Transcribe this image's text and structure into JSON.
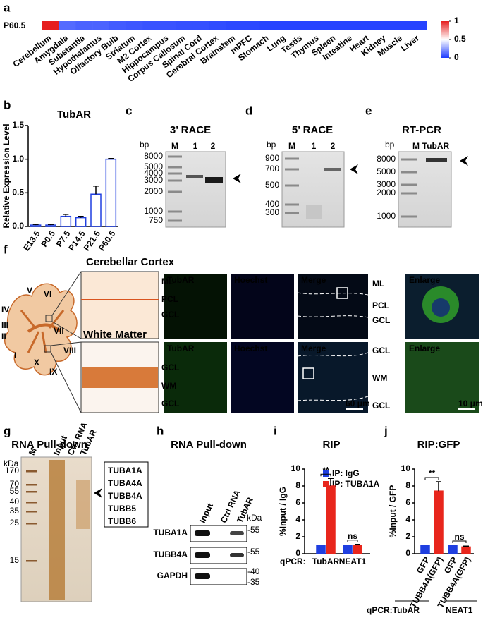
{
  "a": {
    "label": "a",
    "row_label": "P60.5",
    "type": "heatmap",
    "categories": [
      "Cerebellum",
      "Amygdala",
      "Substantia",
      "Hypothalamus",
      "Olfactory Bulb",
      "Striatum",
      "M2 Cortex",
      "Hippocampus",
      "Corpus Callosum",
      "Spinal Cord",
      "Cerebral Cortex",
      "Brainstem",
      "mPFC",
      "Stomach",
      "Lung",
      "Testis",
      "Thymus",
      "Spleen",
      "Intestine",
      "Heart",
      "Kidney",
      "Muscle",
      "Liver"
    ],
    "values": [
      1,
      0.12,
      0.1,
      0.1,
      0.08,
      0.07,
      0.06,
      0.06,
      0.05,
      0.05,
      0.04,
      0.03,
      0.03,
      0.02,
      0.02,
      0.02,
      0.02,
      0.02,
      0.02,
      0.02,
      0.02,
      0.02,
      0.02
    ],
    "clim": [
      0,
      1
    ],
    "colorbar_ticks": [
      1,
      0.5,
      0
    ]
  },
  "b": {
    "label": "b",
    "type": "bar",
    "title": "TubAR",
    "ylabel": "Relative Expression Level",
    "categories": [
      "E13.5",
      "P0.5",
      "P7.5",
      "P14.5",
      "P21.5",
      "P60.5"
    ],
    "values": [
      0.02,
      0.02,
      0.15,
      0.13,
      0.48,
      1.0
    ],
    "errors": [
      0.01,
      0.01,
      0.03,
      0.02,
      0.12,
      0.01
    ],
    "color": "#1f3fe0",
    "ylim": [
      0,
      1.5
    ],
    "yticks": [
      {
        "value": 0,
        "label": "0.0"
      },
      {
        "value": 0.5,
        "label": "0.5"
      },
      {
        "value": 1,
        "label": "1.0"
      },
      {
        "value": 1.5,
        "label": "1.5"
      }
    ]
  },
  "c": {
    "label": "c",
    "title": "3’ RACE",
    "unit": "bp",
    "lanes": [
      "M",
      "1",
      "2"
    ],
    "ladder": [
      8000,
      5000,
      4000,
      3000,
      2000,
      1000,
      750
    ]
  },
  "d": {
    "label": "d",
    "title": "5’ RACE",
    "unit": "bp",
    "lanes": [
      "M",
      "1",
      "2"
    ],
    "ladder": [
      900,
      700,
      500,
      400,
      300
    ]
  },
  "e": {
    "label": "e",
    "title": "RT-PCR",
    "unit": "bp",
    "lanes": [
      "M",
      "TubAR"
    ],
    "ladder": [
      8000,
      5000,
      3000,
      2000,
      1000
    ]
  },
  "f": {
    "label": "f",
    "regions": [
      "Cerebellar Cortex",
      "White Matter"
    ],
    "lobules": [
      "IV",
      "V",
      "VI",
      "III",
      "II",
      "VII",
      "VIII",
      "I",
      "X",
      "IX"
    ],
    "layers_top": [
      "ML",
      "PCL",
      "GCL"
    ],
    "layers_bottom": [
      "GCL",
      "WM",
      "GCL"
    ],
    "channels": [
      "TubAR",
      "Hoechst",
      "Merge",
      "Enlarge"
    ],
    "channels_bottom": [
      "TubAR",
      "Hoechst",
      "Merge",
      "Enlarge"
    ],
    "merge_layers_top": [
      "ML",
      "PCL",
      "GCL"
    ],
    "merge_layers_bottom": [
      "GCL",
      "WM",
      "GCL"
    ],
    "scale_bars": [
      "60 μm",
      "10 μm"
    ]
  },
  "g": {
    "label": "g",
    "title": "RNA Pull-down",
    "unit": "kDa",
    "lanes": [
      "M",
      "Input",
      "Ctrl RNA",
      "TubAR"
    ],
    "ladder": [
      170,
      70,
      55,
      40,
      35,
      25,
      15
    ],
    "proteins": [
      "TUBA1A",
      "TUBA4A",
      "TUBB4A",
      "TUBB5",
      "TUBB6"
    ]
  },
  "h": {
    "label": "h",
    "title": "RNA Pull-down",
    "unit": "kDa",
    "lanes": [
      "Input",
      "Ctrl RNA",
      "TubAR"
    ],
    "rows": [
      "TUBA1A",
      "TUBB4A",
      "GAPDH"
    ],
    "markers": [
      "-55",
      "-55",
      "-40",
      "-35"
    ]
  },
  "i": {
    "label": "i",
    "type": "bar",
    "title": "RIP",
    "ylabel": "%Input / IgG",
    "xprefix": "qPCR:",
    "categories": [
      "TubAR",
      "NEAT1"
    ],
    "ylim": [
      0,
      10
    ],
    "yticks": [
      0,
      2,
      4,
      6,
      8,
      10
    ],
    "series": [
      {
        "name": "IP: IgG",
        "color": "#1f3fe0",
        "values": [
          1,
          1
        ],
        "errors": [
          0,
          0
        ]
      },
      {
        "name": "IP: TUBA1A",
        "color": "#e8261c",
        "values": [
          8,
          1
        ],
        "errors": [
          0.9,
          0.1
        ]
      }
    ],
    "significance": [
      "**",
      "ns"
    ]
  },
  "j": {
    "label": "j",
    "type": "bar",
    "title": "RIP:GFP",
    "ylabel": "%Input / GFP",
    "categories": [
      "GFP",
      "TUBB4A(GFP)",
      "GFP",
      "TUBB4A(GFP)"
    ],
    "ylim": [
      0,
      10
    ],
    "yticks": [
      0,
      2,
      4,
      6,
      8,
      10
    ],
    "values": [
      1,
      7.4,
      1,
      0.8
    ],
    "errors": [
      0,
      1.1,
      0,
      0.1
    ],
    "colors": [
      "#1f3fe0",
      "#e8261c",
      "#1f3fe0",
      "#e8261c"
    ],
    "groups": [
      "qPCR:TubAR",
      "NEAT1"
    ],
    "significance": [
      "**",
      "ns"
    ]
  }
}
